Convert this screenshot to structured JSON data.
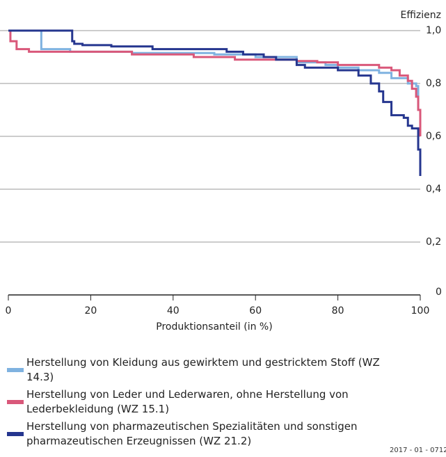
{
  "chart_data": {
    "type": "line",
    "step": "post",
    "y_axis_label": "Effizienz",
    "x_axis_label": "Produktionsanteil (in %)",
    "xlim": [
      0,
      100
    ],
    "xticks": [
      0,
      20,
      40,
      60,
      80,
      100
    ],
    "ylim": [
      0,
      1.0
    ],
    "yticks": [
      0,
      {
        "value": 0.2,
        "label": "0,2"
      },
      {
        "value": 0.4,
        "label": "0,4"
      },
      {
        "value": 0.6,
        "label": "0,6"
      },
      {
        "value": 0.8,
        "label": "0,8"
      },
      {
        "value": 1.0,
        "label": "1,0"
      }
    ],
    "grid": true,
    "series": [
      {
        "name": "Herstellung von Kleidung aus gewirktem und gestricktem Stoff (WZ 14.3)",
        "color": "#7fb2e0",
        "x": [
          0,
          8,
          15,
          30,
          50,
          60,
          70,
          77,
          80,
          85,
          90,
          93,
          97,
          99,
          99.5,
          100
        ],
        "values": [
          1.0,
          0.93,
          0.92,
          0.915,
          0.91,
          0.9,
          0.88,
          0.87,
          0.86,
          0.85,
          0.84,
          0.82,
          0.8,
          0.79,
          0.7,
          0.6
        ]
      },
      {
        "name": "Herstellung von Leder und Lederwaren, ohne Herstellung von Lederbekleidung (WZ 15.1)",
        "color": "#d9587a",
        "x": [
          0,
          0.5,
          2,
          5,
          30,
          45,
          55,
          70,
          75,
          80,
          90,
          93,
          95,
          97,
          98,
          99,
          99.5,
          100
        ],
        "values": [
          1.0,
          0.96,
          0.93,
          0.92,
          0.91,
          0.9,
          0.89,
          0.885,
          0.88,
          0.87,
          0.86,
          0.85,
          0.83,
          0.81,
          0.78,
          0.75,
          0.7,
          0.6
        ]
      },
      {
        "name": "Herstellung von pharmazeutischen Spezialitäten und sonstigen pharmazeutischen Erzeugnissen (WZ 21.2)",
        "color": "#25368f",
        "x": [
          0,
          15.5,
          16,
          18,
          25,
          35,
          53,
          57,
          62,
          65,
          70,
          72,
          80,
          85,
          88,
          90,
          91,
          93,
          96,
          97,
          98,
          99.5,
          100
        ],
        "values": [
          1.0,
          0.96,
          0.95,
          0.945,
          0.94,
          0.93,
          0.92,
          0.91,
          0.9,
          0.89,
          0.87,
          0.86,
          0.85,
          0.83,
          0.8,
          0.77,
          0.73,
          0.68,
          0.67,
          0.64,
          0.63,
          0.55,
          0.45
        ]
      }
    ]
  },
  "footer": "2017 - 01 - 0712"
}
